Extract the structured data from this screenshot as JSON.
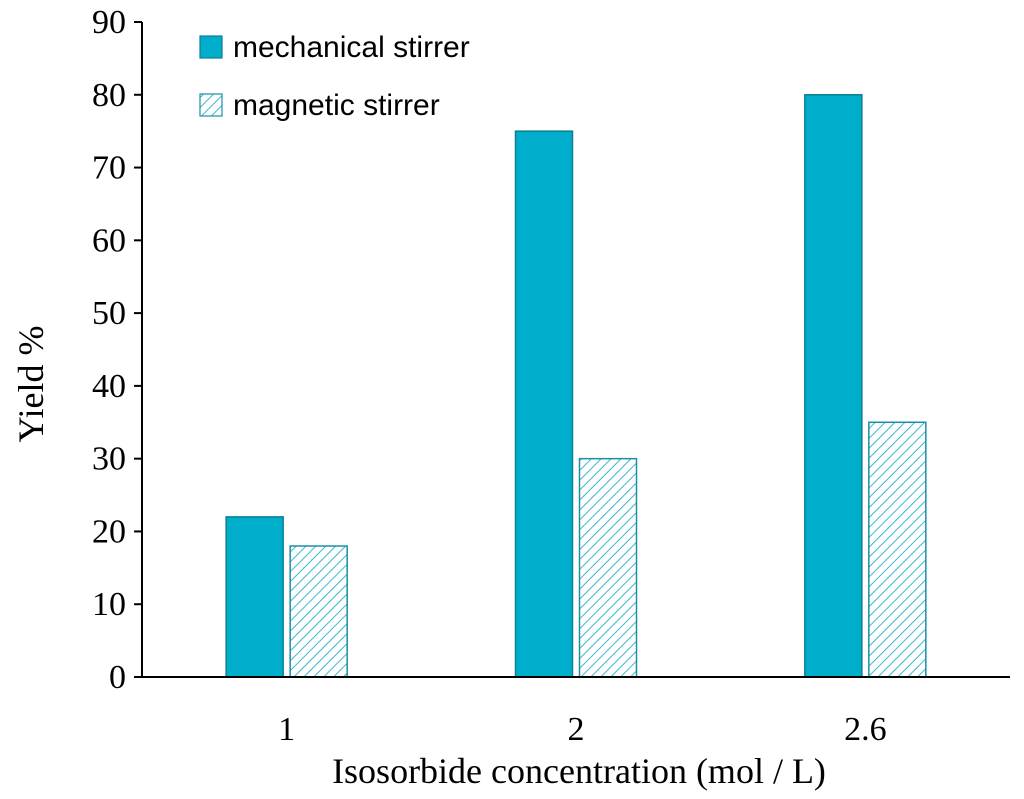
{
  "chart_data": {
    "type": "bar",
    "categories": [
      "1",
      "2",
      "2.6"
    ],
    "series": [
      {
        "name": "mechanical stirrer",
        "values": [
          22,
          75,
          80
        ],
        "color": "#00AECB",
        "pattern": "solid"
      },
      {
        "name": "magnetic stirrer",
        "values": [
          18,
          30,
          35
        ],
        "color": "#00AECB",
        "pattern": "hatched"
      }
    ],
    "xlabel": "Isosorbide concentration (mol / L)",
    "ylabel": "Yield %",
    "ylim": [
      0,
      90
    ],
    "yticks": [
      "0",
      "10",
      "20",
      "30",
      "40",
      "50",
      "60",
      "70",
      "80",
      "90"
    ],
    "grid": false,
    "legend_position": "top-left"
  }
}
